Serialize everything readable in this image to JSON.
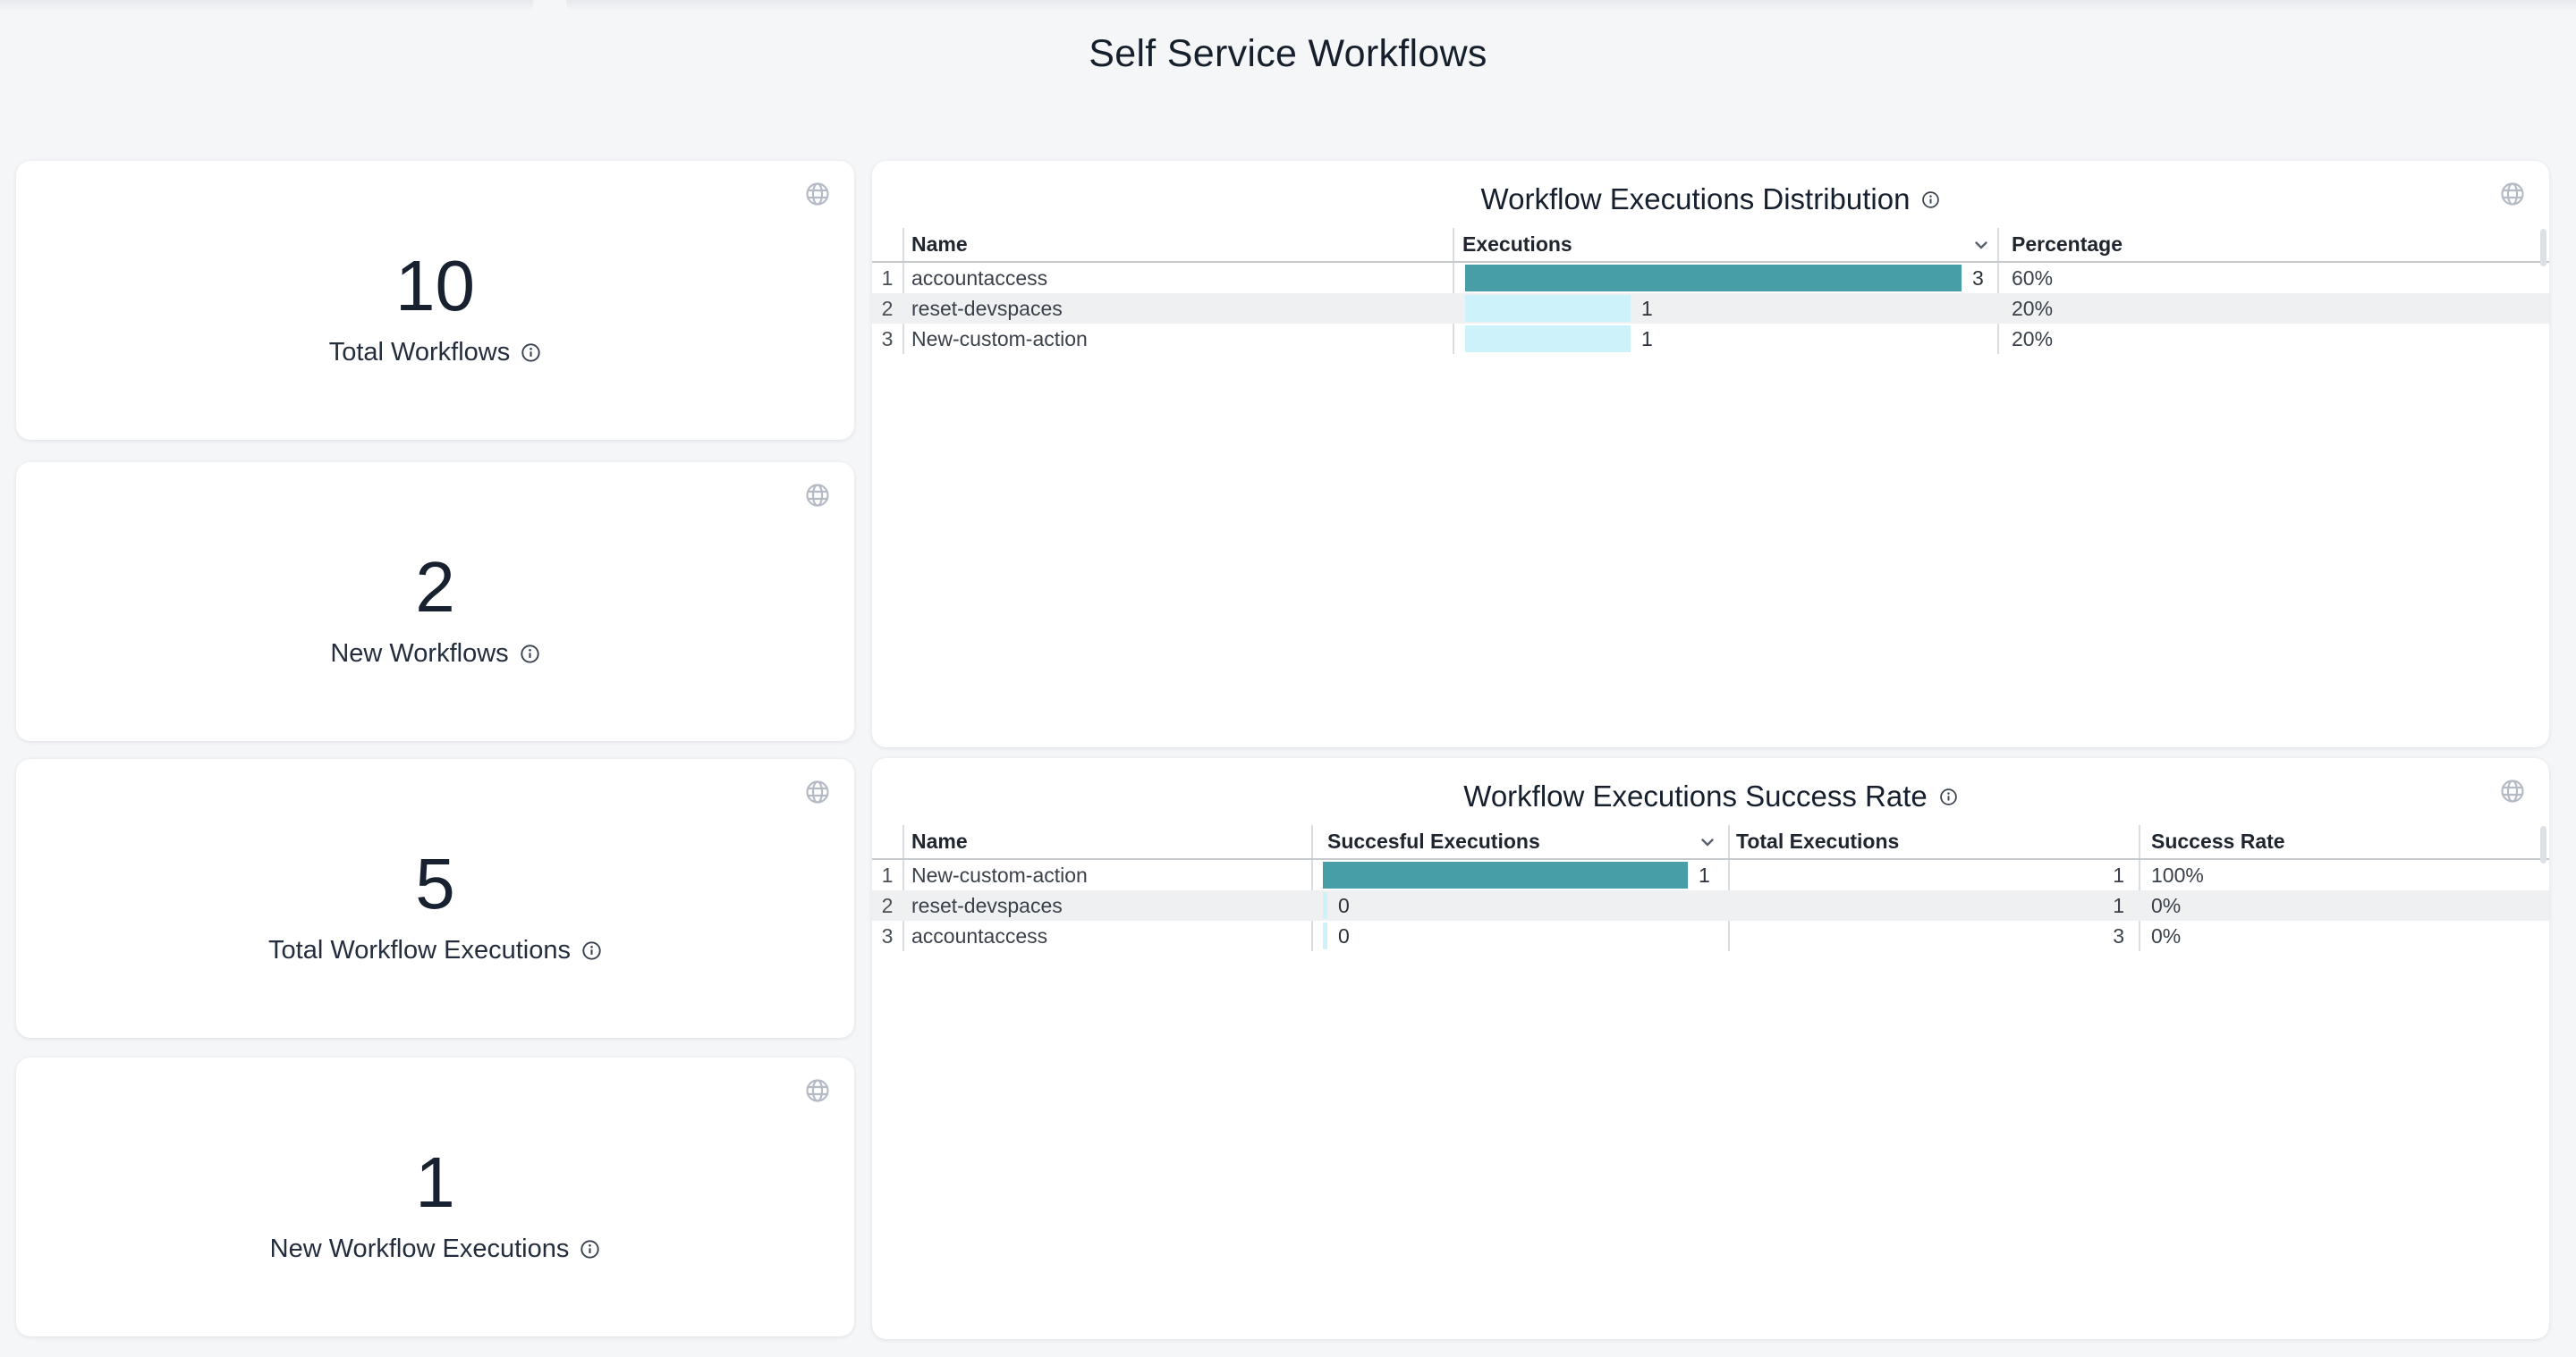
{
  "page": {
    "title": "Self Service Workflows"
  },
  "colors": {
    "page_bg": "#f4f6f8",
    "card_bg": "#ffffff",
    "bar_max": "#489ea6",
    "bar_other": "#cdf2f9",
    "row_stripe": "#eff0f1",
    "title_text": "#16202d"
  },
  "icons": {
    "globe": "globe-icon",
    "info": "info-icon",
    "sort": "chevron-down-icon"
  },
  "stat_cards": [
    {
      "value": "10",
      "label": "Total Workflows"
    },
    {
      "value": "2",
      "label": "New Workflows"
    },
    {
      "value": "5",
      "label": "Total Workflow Executions"
    },
    {
      "value": "1",
      "label": "New Workflow Executions"
    }
  ],
  "distribution_table": {
    "title": "Workflow Executions Distribution",
    "columns": {
      "name": "Name",
      "executions": "Executions",
      "percentage": "Percentage"
    },
    "rows": [
      {
        "index": "1",
        "name": "accountaccess",
        "executions": 3,
        "percentage": "60%"
      },
      {
        "index": "2",
        "name": "reset-devspaces",
        "executions": 1,
        "percentage": "20%"
      },
      {
        "index": "3",
        "name": "New-custom-action",
        "executions": 1,
        "percentage": "20%"
      }
    ]
  },
  "success_table": {
    "title": "Workflow Executions Success Rate",
    "columns": {
      "name": "Name",
      "successful_executions": "Succesful Executions",
      "total_executions": "Total Executions",
      "success_rate": "Success Rate"
    },
    "rows": [
      {
        "index": "1",
        "name": "New-custom-action",
        "successful_executions": 1,
        "total_executions": "1",
        "success_rate": "100%"
      },
      {
        "index": "2",
        "name": "reset-devspaces",
        "successful_executions": 0,
        "total_executions": "1",
        "success_rate": "0%"
      },
      {
        "index": "3",
        "name": "accountaccess",
        "successful_executions": 0,
        "total_executions": "3",
        "success_rate": "0%"
      }
    ]
  }
}
